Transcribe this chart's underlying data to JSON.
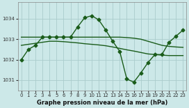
{
  "title": "Graphe pression niveau de la mer (hPa)",
  "background_color": "#cce8e8",
  "grid_color": "#aacccc",
  "line_color": "#1a5c1a",
  "xlim": [
    -0.5,
    23.5
  ],
  "ylim": [
    1030.5,
    1034.8
  ],
  "yticks": [
    1031,
    1032,
    1033,
    1034
  ],
  "xticks": [
    0,
    1,
    2,
    3,
    4,
    5,
    6,
    7,
    8,
    9,
    10,
    11,
    12,
    13,
    14,
    15,
    16,
    17,
    18,
    19,
    20,
    21,
    22,
    23
  ],
  "series_main_x": [
    0,
    1,
    2,
    3,
    4,
    5,
    6,
    7,
    8,
    9,
    10,
    11,
    12,
    13,
    14,
    15,
    16,
    17,
    18,
    19,
    20,
    21,
    22,
    23
  ],
  "series_main_y": [
    1032.0,
    1032.5,
    1032.7,
    1033.1,
    1033.1,
    1033.1,
    1033.1,
    1033.1,
    1033.6,
    1034.05,
    1034.15,
    1033.95,
    1033.45,
    1032.9,
    1032.4,
    1031.05,
    1030.9,
    1031.35,
    1031.85,
    1032.25,
    1032.25,
    1032.85,
    1033.15,
    1033.45
  ],
  "series_flat1_x": [
    0,
    1,
    2,
    3,
    4,
    5,
    6,
    7,
    8,
    9,
    10,
    11,
    12,
    13,
    14,
    15,
    16,
    17,
    18,
    19,
    20,
    21,
    22,
    23
  ],
  "series_flat1_y": [
    1032.7,
    1032.75,
    1032.8,
    1032.85,
    1032.9,
    1032.9,
    1032.88,
    1032.85,
    1032.82,
    1032.78,
    1032.75,
    1032.72,
    1032.68,
    1032.62,
    1032.55,
    1032.48,
    1032.42,
    1032.35,
    1032.28,
    1032.25,
    1032.22,
    1032.2,
    1032.2,
    1032.2
  ],
  "series_flat2_x": [
    0,
    1,
    2,
    3,
    4,
    5,
    6,
    7,
    8,
    9,
    10,
    11,
    12,
    13,
    14,
    15,
    16,
    17,
    18,
    19,
    20,
    21,
    22,
    23
  ],
  "series_flat2_y": [
    1033.1,
    1033.1,
    1033.1,
    1033.1,
    1033.1,
    1033.1,
    1033.1,
    1033.1,
    1033.1,
    1033.1,
    1033.1,
    1033.1,
    1033.1,
    1033.1,
    1033.1,
    1033.08,
    1033.05,
    1033.0,
    1032.9,
    1032.8,
    1032.7,
    1032.65,
    1032.62,
    1032.6
  ],
  "linewidth": 1.0,
  "marker": "D",
  "marker_size": 2.5,
  "title_fontsize": 6,
  "tick_fontsize": 5
}
